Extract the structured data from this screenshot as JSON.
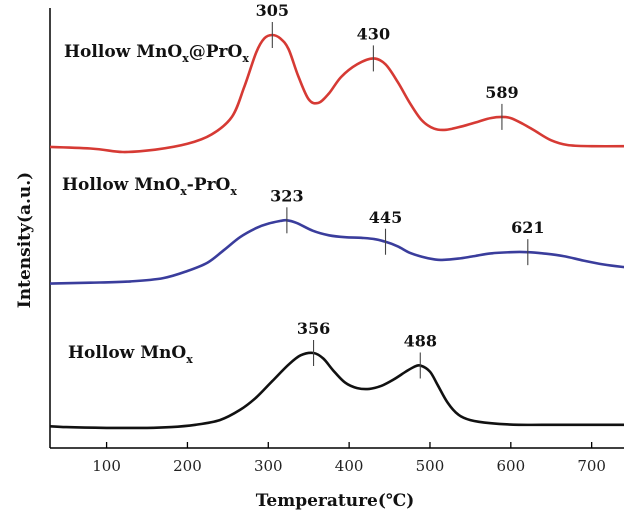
{
  "chart_data": {
    "type": "line",
    "xlabel": "Temperature(℃)",
    "ylabel": "Intensity(a.u.)",
    "xlim": [
      30,
      740
    ],
    "xticks": [
      100,
      200,
      300,
      400,
      500,
      600,
      700
    ],
    "grid": false,
    "series": [
      {
        "name": "Hollow MnOx@PrOx",
        "name_parts": [
          "Hollow MnO",
          "x",
          "@PrO",
          "x"
        ],
        "color": "#d63a34",
        "points": [
          [
            0,
            0.05
          ],
          [
            80,
            0.03
          ],
          [
            120,
            0.0
          ],
          [
            160,
            0.02
          ],
          [
            200,
            0.07
          ],
          [
            230,
            0.15
          ],
          [
            255,
            0.3
          ],
          [
            270,
            0.55
          ],
          [
            285,
            0.85
          ],
          [
            295,
            0.97
          ],
          [
            305,
            1.0
          ],
          [
            315,
            0.97
          ],
          [
            325,
            0.88
          ],
          [
            337,
            0.65
          ],
          [
            350,
            0.45
          ],
          [
            362,
            0.42
          ],
          [
            375,
            0.5
          ],
          [
            390,
            0.64
          ],
          [
            410,
            0.75
          ],
          [
            430,
            0.8
          ],
          [
            445,
            0.75
          ],
          [
            460,
            0.6
          ],
          [
            475,
            0.42
          ],
          [
            490,
            0.27
          ],
          [
            505,
            0.2
          ],
          [
            520,
            0.19
          ],
          [
            540,
            0.22
          ],
          [
            560,
            0.26
          ],
          [
            575,
            0.29
          ],
          [
            589,
            0.3
          ],
          [
            600,
            0.29
          ],
          [
            615,
            0.24
          ],
          [
            630,
            0.18
          ],
          [
            650,
            0.1
          ],
          [
            670,
            0.06
          ],
          [
            700,
            0.05
          ],
          [
            740,
            0.05
          ]
        ],
        "peaks": [
          305,
          430,
          589
        ]
      },
      {
        "name": "Hollow MnOx-PrOx",
        "name_parts": [
          "Hollow MnO",
          "x",
          "-PrO",
          "x"
        ],
        "color": "#3a3d9c",
        "points": [
          [
            0,
            0.0
          ],
          [
            80,
            0.02
          ],
          [
            130,
            0.04
          ],
          [
            170,
            0.09
          ],
          [
            200,
            0.2
          ],
          [
            225,
            0.33
          ],
          [
            245,
            0.52
          ],
          [
            265,
            0.72
          ],
          [
            285,
            0.86
          ],
          [
            300,
            0.93
          ],
          [
            315,
            0.97
          ],
          [
            323,
            0.98
          ],
          [
            335,
            0.94
          ],
          [
            355,
            0.82
          ],
          [
            375,
            0.75
          ],
          [
            395,
            0.72
          ],
          [
            415,
            0.71
          ],
          [
            432,
            0.69
          ],
          [
            445,
            0.65
          ],
          [
            460,
            0.58
          ],
          [
            475,
            0.48
          ],
          [
            490,
            0.42
          ],
          [
            505,
            0.38
          ],
          [
            515,
            0.37
          ],
          [
            535,
            0.39
          ],
          [
            555,
            0.43
          ],
          [
            575,
            0.47
          ],
          [
            600,
            0.49
          ],
          [
            621,
            0.49
          ],
          [
            640,
            0.47
          ],
          [
            665,
            0.43
          ],
          [
            690,
            0.36
          ],
          [
            715,
            0.3
          ],
          [
            740,
            0.26
          ]
        ],
        "peaks": [
          323,
          445,
          621
        ]
      },
      {
        "name": "Hollow MnOx",
        "name_parts": [
          "Hollow MnO",
          "x"
        ],
        "color": "#111111",
        "points": [
          [
            0,
            0.08
          ],
          [
            50,
            0.05
          ],
          [
            100,
            0.04
          ],
          [
            150,
            0.04
          ],
          [
            180,
            0.05
          ],
          [
            210,
            0.08
          ],
          [
            240,
            0.14
          ],
          [
            265,
            0.27
          ],
          [
            285,
            0.43
          ],
          [
            305,
            0.64
          ],
          [
            325,
            0.85
          ],
          [
            340,
            0.97
          ],
          [
            356,
            1.0
          ],
          [
            368,
            0.93
          ],
          [
            380,
            0.78
          ],
          [
            395,
            0.62
          ],
          [
            410,
            0.55
          ],
          [
            425,
            0.54
          ],
          [
            440,
            0.58
          ],
          [
            455,
            0.66
          ],
          [
            470,
            0.76
          ],
          [
            480,
            0.82
          ],
          [
            488,
            0.84
          ],
          [
            500,
            0.76
          ],
          [
            510,
            0.58
          ],
          [
            522,
            0.36
          ],
          [
            535,
            0.21
          ],
          [
            550,
            0.14
          ],
          [
            575,
            0.1
          ],
          [
            610,
            0.08
          ],
          [
            660,
            0.08
          ],
          [
            740,
            0.08
          ]
        ],
        "peaks": [
          356,
          488
        ]
      }
    ]
  }
}
